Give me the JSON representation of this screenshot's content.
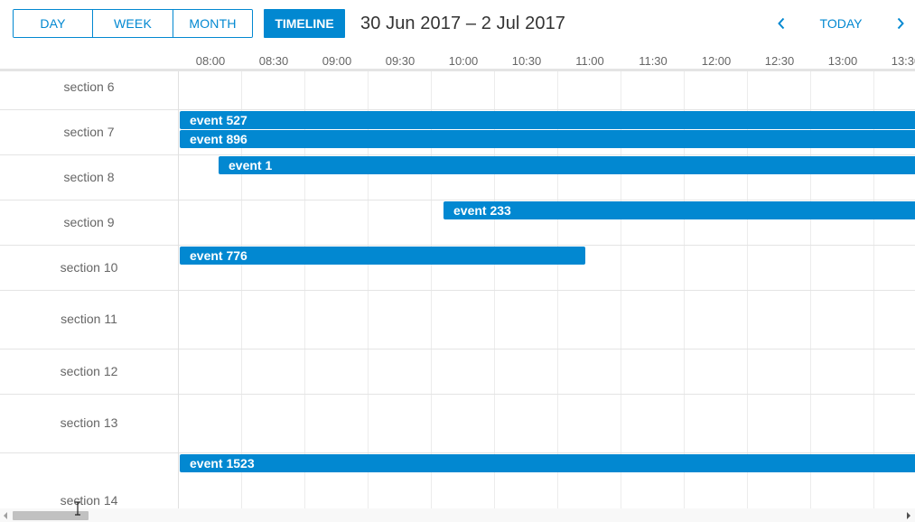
{
  "toolbar": {
    "tabs": [
      {
        "label": "DAY"
      },
      {
        "label": "WEEK"
      },
      {
        "label": "MONTH"
      }
    ],
    "timeline_label": "TIMELINE",
    "date_range": "30 Jun 2017 – 2 Jul 2017",
    "prev_icon": "chevron-left-icon",
    "today_label": "TODAY",
    "next_icon": "chevron-right-icon"
  },
  "time_slots": [
    "08:00",
    "08:30",
    "09:00",
    "09:30",
    "10:00",
    "10:30",
    "11:00",
    "11:30",
    "12:00",
    "12:30",
    "13:00",
    "13:30"
  ],
  "sections": [
    {
      "label": "section 6"
    },
    {
      "label": "section 7"
    },
    {
      "label": "section 8"
    },
    {
      "label": "section 9"
    },
    {
      "label": "section 10"
    },
    {
      "label": "section 11"
    },
    {
      "label": "section 12"
    },
    {
      "label": "section 13"
    },
    {
      "label": "section 14"
    }
  ],
  "events": [
    {
      "label": "event 527",
      "section": "section 7"
    },
    {
      "label": "event 896",
      "section": "section 7"
    },
    {
      "label": "event 1",
      "section": "section 8"
    },
    {
      "label": "event 233",
      "section": "section 9"
    },
    {
      "label": "event 776",
      "section": "section 10"
    },
    {
      "label": "event 1523",
      "section": "section 14"
    }
  ],
  "colors": {
    "accent": "#0288d1",
    "event_bg": "#0288d1",
    "text": "#333333",
    "muted_text": "#666666",
    "grid_line": "#e4e4e4"
  }
}
